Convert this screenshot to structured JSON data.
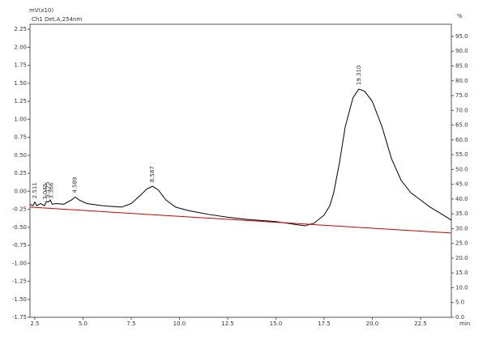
{
  "chart_data": {
    "type": "line",
    "ylabel": "mV(x10)",
    "channel": "Ch1 Det.A,254nm",
    "y2label": "%",
    "xlabel": "min",
    "xlim": [
      2.25,
      24.1
    ],
    "xticks": [
      2.5,
      {
        "value": 5,
        "label": "5.0"
      },
      7.5,
      {
        "value": 10,
        "label": "10.0"
      },
      12.5,
      {
        "value": 15,
        "label": "15.0"
      },
      17.5,
      {
        "value": 20,
        "label": "20.0"
      },
      22.5
    ],
    "ylim": [
      -1.75,
      2.32
    ],
    "yticks": [
      2.25,
      {
        "value": 2,
        "label": "2.00"
      },
      1.75,
      {
        "value": 1.5,
        "label": "1.50"
      },
      1.25,
      {
        "value": 1,
        "label": "1.00"
      },
      0.75,
      {
        "value": 0.5,
        "label": "0.50"
      },
      0.25,
      {
        "value": 0,
        "label": "0.00"
      },
      -0.25,
      {
        "value": -0.5,
        "label": "-0.50"
      },
      -0.75,
      {
        "value": -1,
        "label": "-1.00"
      },
      -1.25,
      {
        "value": -1.5,
        "label": "-1.50"
      },
      -1.75
    ],
    "y2lim": [
      0,
      99.1
    ],
    "y2ticks": [
      {
        "value": 0,
        "label": "0.0"
      },
      {
        "value": 5,
        "label": "5.0"
      },
      {
        "value": 10,
        "label": "10.0"
      },
      {
        "value": 15,
        "label": "15.0"
      },
      {
        "value": 20,
        "label": "20.0"
      },
      {
        "value": 25,
        "label": "25.0"
      },
      {
        "value": 30,
        "label": "30.0"
      },
      {
        "value": 35,
        "label": "35.0"
      },
      {
        "value": 40,
        "label": "40.0"
      },
      {
        "value": 45,
        "label": "45.0"
      },
      {
        "value": 50,
        "label": "50.0"
      },
      {
        "value": 55,
        "label": "55.0"
      },
      {
        "value": 60,
        "label": "60.0"
      },
      {
        "value": 65,
        "label": "65.0"
      },
      {
        "value": 70,
        "label": "70.0"
      },
      {
        "value": 75,
        "label": "75.0"
      },
      {
        "value": 80,
        "label": "80.0"
      },
      {
        "value": 85,
        "label": "85.0"
      },
      {
        "value": 90,
        "label": "90.0"
      },
      {
        "value": 95,
        "label": "95.0"
      }
    ],
    "series": [
      {
        "color": "#000000",
        "x": [
          2.25,
          2.4,
          2.5,
          2.6,
          2.8,
          3.0,
          3.1,
          3.2,
          3.3,
          3.4,
          3.6,
          4.0,
          4.4,
          4.6,
          4.8,
          5.2,
          6,
          7,
          7.5,
          8,
          8.3,
          8.6,
          8.9,
          9.3,
          9.8,
          10.5,
          11.5,
          12.5,
          13.5,
          15,
          16,
          16.5,
          17,
          17.5,
          17.8,
          18,
          18.3,
          18.6,
          19,
          19.3,
          19.6,
          20,
          20.5,
          21,
          21.5,
          22,
          22.5,
          23,
          23.5,
          24.1
        ],
        "values": [
          -0.18,
          -0.2,
          -0.15,
          -0.2,
          -0.17,
          -0.2,
          -0.14,
          -0.15,
          -0.12,
          -0.18,
          -0.17,
          -0.18,
          -0.12,
          -0.08,
          -0.12,
          -0.17,
          -0.2,
          -0.22,
          -0.17,
          -0.05,
          0.03,
          0.07,
          0.02,
          -0.12,
          -0.22,
          -0.27,
          -0.32,
          -0.36,
          -0.39,
          -0.42,
          -0.46,
          -0.48,
          -0.44,
          -0.33,
          -0.2,
          -0.02,
          0.4,
          0.9,
          1.3,
          1.42,
          1.39,
          1.25,
          0.9,
          0.45,
          0.15,
          -0.02,
          -0.12,
          -0.22,
          -0.3,
          -0.4
        ]
      },
      {
        "color": "#cc0000",
        "x": [
          2.25,
          24.1
        ],
        "values": [
          -0.22,
          -0.58
        ]
      }
    ],
    "annotations": [
      {
        "text": "2.511",
        "x": 2.511
      },
      {
        "text": "3.045",
        "x": 3.045
      },
      {
        "text": "3.175",
        "x": 3.175
      },
      {
        "text": "3.366",
        "x": 3.366
      },
      {
        "text": "4.589",
        "x": 4.589
      },
      {
        "text": "8.587",
        "x": 8.587
      },
      {
        "text": "19.310",
        "x": 19.31
      }
    ]
  }
}
